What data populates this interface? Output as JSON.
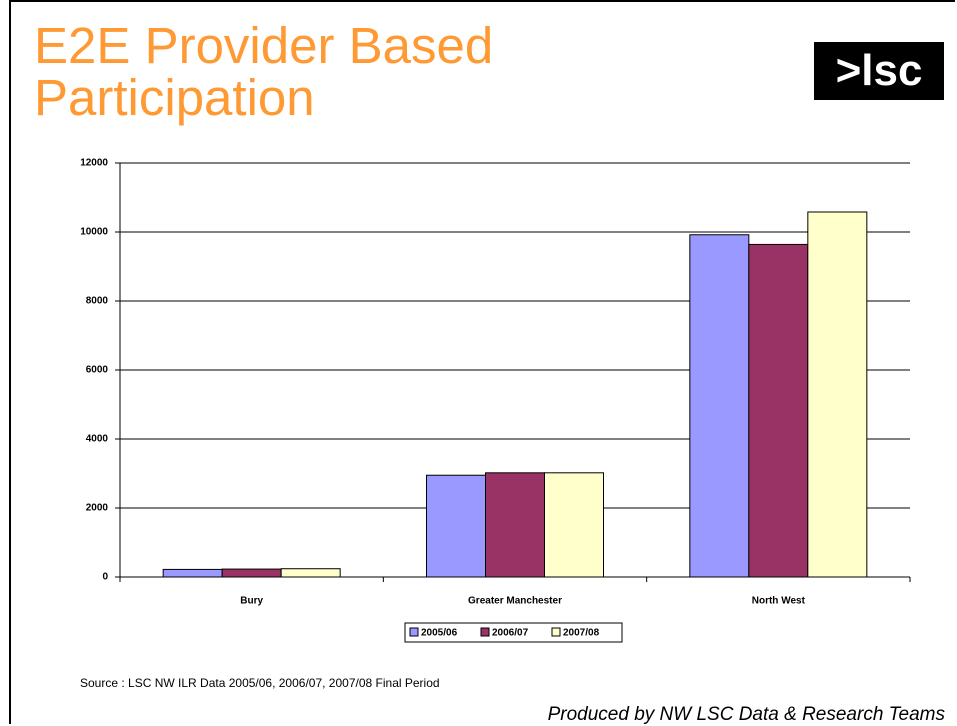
{
  "title": "E2E Provider Based Participation",
  "logo": ">lsc",
  "chart_data": {
    "type": "bar",
    "categories": [
      "Bury",
      "Greater Manchester",
      "North West"
    ],
    "series": [
      {
        "name": "2005/06",
        "color": "#9999ff",
        "values": [
          220,
          2950,
          9920
        ]
      },
      {
        "name": "2006/07",
        "color": "#993366",
        "values": [
          230,
          3020,
          9640
        ]
      },
      {
        "name": "2007/08",
        "color": "#ffffcc",
        "values": [
          240,
          3020,
          10580
        ]
      }
    ],
    "ylim": [
      0,
      12000
    ],
    "yticks": [
      0,
      2000,
      4000,
      6000,
      8000,
      10000,
      12000
    ],
    "grid": true,
    "legend": "bottom"
  },
  "source": "Source : LSC NW ILR Data 2005/06, 2006/07, 2007/08 Final Period",
  "produced": "Produced by NW LSC Data & Research Teams"
}
